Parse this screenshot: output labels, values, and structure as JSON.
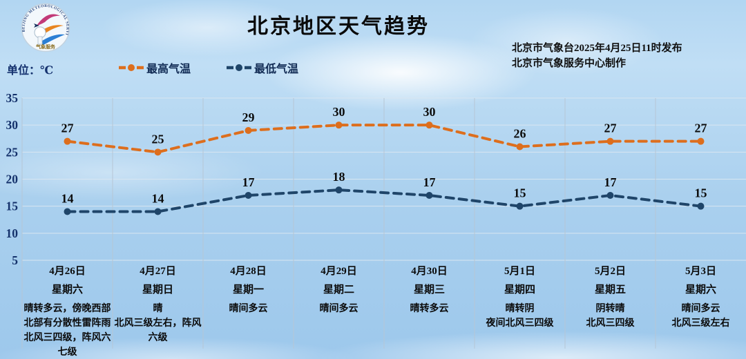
{
  "page": {
    "title": "北京地区天气趋势",
    "unit_label": "单位：℃",
    "issued": {
      "line1": "北京市气象台2025年4月25日11时发布",
      "line2": "北京市气象服务中心制作"
    },
    "logo": {
      "ring_text": "BEIJING METEOROLOGICAL SERVICE",
      "bottom_text": "气象服务"
    }
  },
  "legend": {
    "items": [
      {
        "label": "最高气温",
        "color": "#dd6e1d"
      },
      {
        "label": "最低气温",
        "color": "#1f4569"
      }
    ]
  },
  "chart_data": {
    "type": "line",
    "title": "北京地区天气趋势",
    "ylabel": "℃",
    "ylim": [
      5,
      35
    ],
    "yticks": [
      35,
      30,
      25,
      20,
      15,
      10,
      5
    ],
    "grid": true,
    "line_style": "dashed",
    "legend_position": "top",
    "categories": [
      "4月26日",
      "4月27日",
      "4月28日",
      "4月29日",
      "4月30日",
      "5月1日",
      "5月2日",
      "5月3日"
    ],
    "weekdays": [
      "星期六",
      "星期日",
      "星期一",
      "星期二",
      "星期三",
      "星期四",
      "星期五",
      "星期六"
    ],
    "weather": [
      [
        "晴转多云，傍晚西部北部有分散性雷阵雨",
        "北风三四级，阵风六七级"
      ],
      [
        "晴",
        "北风三级左右，阵风六级"
      ],
      [
        "晴间多云"
      ],
      [
        "晴间多云"
      ],
      [
        "晴转多云"
      ],
      [
        "晴转阴",
        "夜间北风三四级"
      ],
      [
        "阴转晴",
        "北风三四级"
      ],
      [
        "晴间多云",
        "北风三级左右"
      ]
    ],
    "series": [
      {
        "name": "最高气温",
        "color": "#dd6e1d",
        "values": [
          27,
          25,
          29,
          30,
          30,
          26,
          27,
          27
        ]
      },
      {
        "name": "最低气温",
        "color": "#1f4569",
        "values": [
          14,
          14,
          17,
          18,
          17,
          15,
          17,
          15
        ]
      }
    ]
  }
}
